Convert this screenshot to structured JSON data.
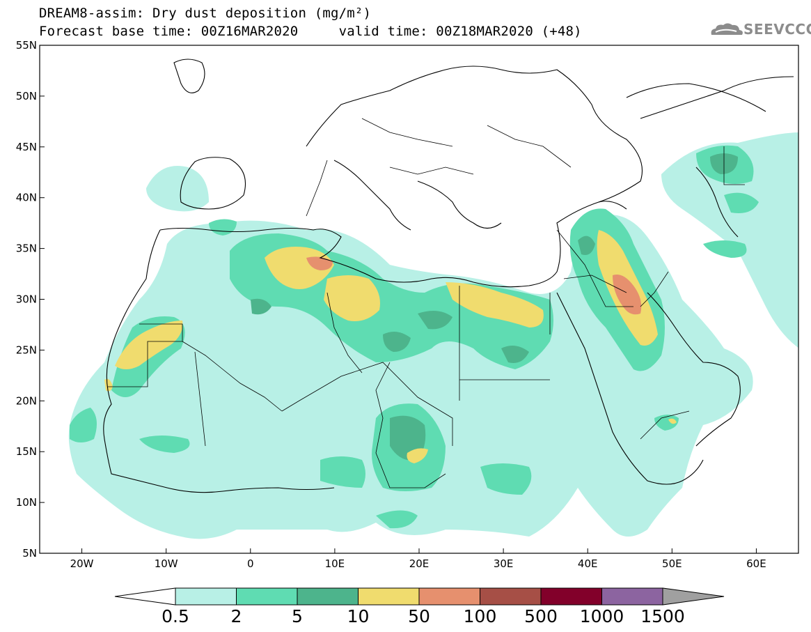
{
  "title_line1": "DREAM8-assim: Dry dust deposition (mg/m²)",
  "title_line2": "Forecast base time: 00Z16MAR2020     valid time: 00Z18MAR2020 (+48)",
  "logo": {
    "name": "SEEVCCC",
    "icon": "cloud-icon"
  },
  "map": {
    "lat_range": [
      5,
      55
    ],
    "lon_range": [
      -25,
      65
    ],
    "lat_ticks": [
      "55N",
      "50N",
      "45N",
      "40N",
      "35N",
      "30N",
      "25N",
      "20N",
      "15N",
      "10N",
      "5N"
    ],
    "lon_ticks": [
      "20W",
      "10W",
      "0",
      "10E",
      "20E",
      "30E",
      "40E",
      "50E",
      "60E"
    ]
  },
  "colorbar": {
    "labels": [
      "0.5",
      "2",
      "5",
      "10",
      "50",
      "100",
      "500",
      "1000",
      "1500"
    ],
    "colors": [
      "#b8f0e6",
      "#5fdcb2",
      "#4db48c",
      "#f0dc6e",
      "#e6906e",
      "#a64f46",
      "#82002a",
      "#8c64a0"
    ],
    "overflow_color": "#a0a0a0"
  },
  "levels": {
    "c1": "#b8f0e6",
    "c2": "#5fdcb2",
    "c3": "#4db48c",
    "c4": "#f0dc6e",
    "c5": "#e6906e"
  }
}
